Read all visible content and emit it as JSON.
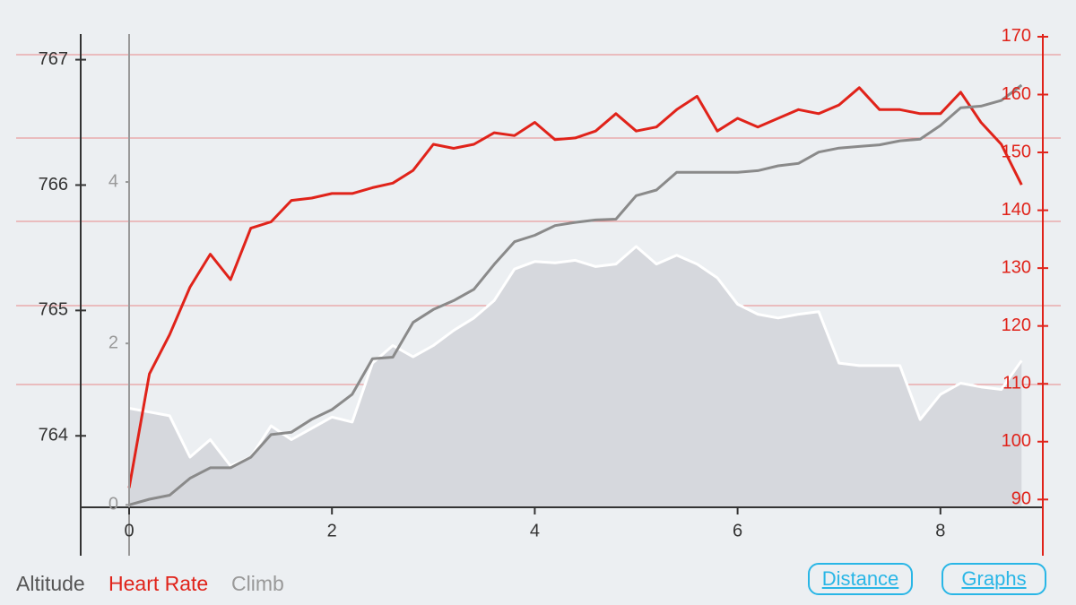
{
  "chart_data": {
    "type": "line",
    "x": [
      0,
      0.2,
      0.4,
      0.6,
      0.8,
      1.0,
      1.2,
      1.4,
      1.6,
      1.8,
      2.0,
      2.2,
      2.4,
      2.6,
      2.8,
      3.0,
      3.2,
      3.4,
      3.6,
      3.8,
      4.0,
      4.2,
      4.4,
      4.6,
      4.8,
      5.0,
      5.2,
      5.4,
      5.6,
      5.8,
      6.0,
      6.2,
      6.4,
      6.6,
      6.8,
      7.0,
      7.2,
      7.4,
      7.6,
      7.8,
      8.0,
      8.2,
      8.4,
      8.6,
      8.8
    ],
    "xlim": [
      0,
      8.8
    ],
    "xticks": [
      0,
      2,
      4,
      6,
      8
    ],
    "ylim": [
      763.43,
      767.19
    ],
    "yticks": [
      764,
      765,
      766,
      767
    ],
    "y2lim": [
      88.65,
      170.15
    ],
    "y2ticks": [
      90,
      100,
      110,
      120,
      130,
      140,
      150,
      160,
      170
    ],
    "y3lim": [
      -0.03,
      5.81
    ],
    "y3ticks": [
      0,
      2,
      4
    ],
    "series": [
      {
        "name": "Altitude",
        "color": "#ffffff",
        "fill": "#d6d8dd",
        "axis": "y",
        "values": [
          764.22,
          764.19,
          764.16,
          763.83,
          763.97,
          763.76,
          763.83,
          764.08,
          763.97,
          764.06,
          764.15,
          764.11,
          764.58,
          764.72,
          764.63,
          764.72,
          764.84,
          764.94,
          765.08,
          765.33,
          765.39,
          765.38,
          765.4,
          765.35,
          765.37,
          765.51,
          765.37,
          765.44,
          765.37,
          765.26,
          765.05,
          764.97,
          764.94,
          764.97,
          764.99,
          764.58,
          764.56,
          764.56,
          764.56,
          764.13,
          764.33,
          764.42,
          764.39,
          764.37,
          764.6
        ]
      },
      {
        "name": "Heart Rate",
        "color": "#e0231a",
        "axis": "y2",
        "values": [
          92,
          111.7,
          118.5,
          126.7,
          132.4,
          128,
          136.9,
          138,
          141.7,
          142.1,
          142.9,
          142.9,
          143.9,
          144.7,
          146.9,
          151.4,
          150.7,
          151.4,
          153.4,
          152.9,
          155.2,
          152.2,
          152.5,
          153.7,
          156.7,
          153.7,
          154.4,
          157.4,
          159.7,
          153.7,
          155.9,
          154.4,
          155.9,
          157.4,
          156.7,
          158.2,
          161.2,
          157.4,
          157.4,
          156.7,
          156.7,
          160.4,
          155.2,
          151.4,
          144.4
        ]
      },
      {
        "name": "Climb",
        "color": "#8a8a8a",
        "axis": "y3",
        "values": [
          0,
          0.07,
          0.12,
          0.33,
          0.46,
          0.46,
          0.59,
          0.87,
          0.9,
          1.06,
          1.18,
          1.37,
          1.81,
          1.83,
          2.26,
          2.42,
          2.53,
          2.67,
          2.98,
          3.26,
          3.34,
          3.46,
          3.5,
          3.53,
          3.54,
          3.83,
          3.9,
          4.12,
          4.12,
          4.12,
          4.12,
          4.14,
          4.2,
          4.23,
          4.37,
          4.42,
          4.44,
          4.46,
          4.51,
          4.53,
          4.7,
          4.92,
          4.94,
          5.01,
          5.2
        ]
      }
    ],
    "buttons": [
      "Distance",
      "Graphs"
    ]
  }
}
